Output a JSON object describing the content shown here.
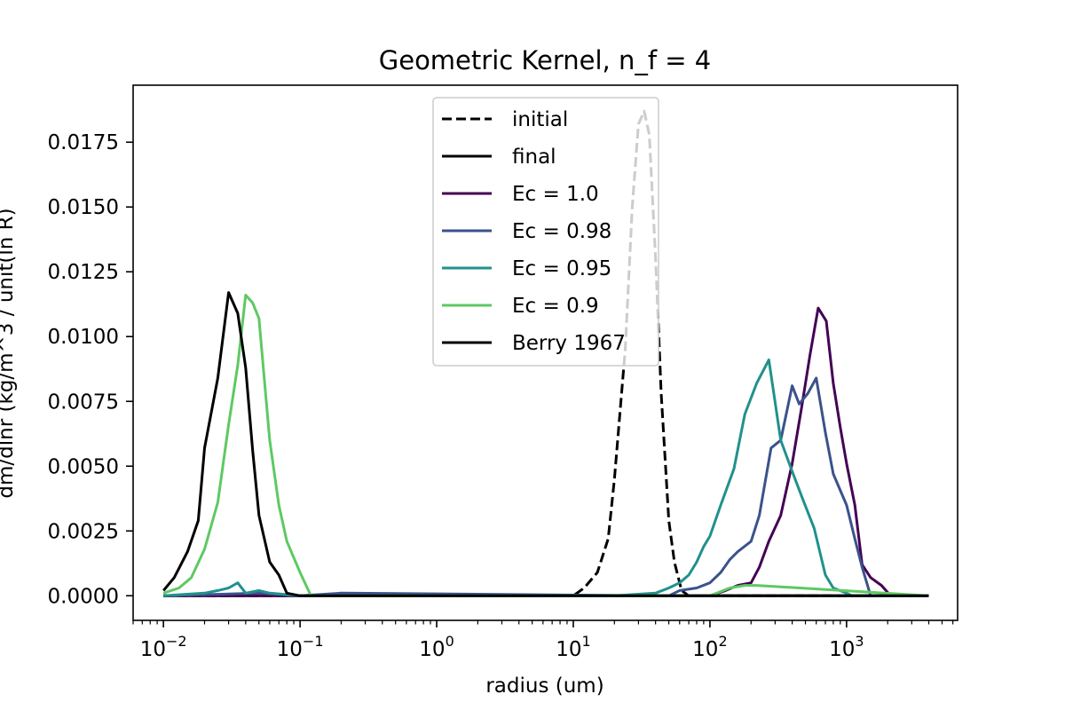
{
  "chart_data": {
    "type": "line",
    "title": "Geometric Kernel, n_f = 4",
    "xlabel": "radius (um)",
    "ylabel": "dm/dlnr (kg/m^3 / unit(ln R)",
    "xscale": "log",
    "xlim": [
      0.006,
      6500
    ],
    "ylim": [
      -0.00095,
      0.0197
    ],
    "x_ticks": [
      {
        "value": 0.01,
        "base": "10",
        "exp": "−2"
      },
      {
        "value": 0.1,
        "base": "10",
        "exp": "−1"
      },
      {
        "value": 1,
        "base": "10",
        "exp": "0"
      },
      {
        "value": 10,
        "base": "10",
        "exp": "1"
      },
      {
        "value": 100,
        "base": "10",
        "exp": "2"
      },
      {
        "value": 1000,
        "base": "10",
        "exp": "3"
      }
    ],
    "y_ticks": [
      {
        "value": 0.0,
        "label": "0.0000"
      },
      {
        "value": 0.0025,
        "label": "0.0025"
      },
      {
        "value": 0.005,
        "label": "0.0050"
      },
      {
        "value": 0.0075,
        "label": "0.0075"
      },
      {
        "value": 0.01,
        "label": "0.0100"
      },
      {
        "value": 0.0125,
        "label": "0.0125"
      },
      {
        "value": 0.015,
        "label": "0.0150"
      },
      {
        "value": 0.0175,
        "label": "0.0175"
      }
    ],
    "grid": false,
    "legend_position": "top-center",
    "series": [
      {
        "name": "initial",
        "color": "#000000",
        "dash": "dashed",
        "x": [
          0.01,
          10,
          12,
          15,
          18,
          20,
          24,
          27,
          30,
          33,
          36,
          40,
          44,
          50,
          55,
          62,
          70,
          4000
        ],
        "y": [
          0,
          0,
          0.0003,
          0.0009,
          0.0022,
          0.0045,
          0.0095,
          0.015,
          0.0182,
          0.0187,
          0.0178,
          0.013,
          0.0078,
          0.0029,
          0.0013,
          0.0002,
          0,
          0
        ]
      },
      {
        "name": "final",
        "color": "#000000",
        "dash": "solid",
        "x": [
          0.01,
          4000
        ],
        "y": [
          0,
          0
        ]
      },
      {
        "name": "Ec = 1.0",
        "color": "#440154",
        "dash": "solid",
        "x": [
          0.01,
          0.03,
          0.05,
          0.1,
          50,
          100,
          130,
          160,
          200,
          230,
          270,
          330,
          400,
          470,
          540,
          620,
          710,
          800,
          900,
          1000,
          1150,
          1300,
          1500,
          1800,
          2100,
          4000
        ],
        "y": [
          0,
          0,
          0,
          0,
          0,
          0,
          0.0002,
          0.0004,
          0.0005,
          0.0011,
          0.0021,
          0.0031,
          0.0051,
          0.0073,
          0.0093,
          0.0111,
          0.0106,
          0.0082,
          0.0065,
          0.0051,
          0.0035,
          0.0012,
          0.0007,
          0.0004,
          0,
          0
        ]
      },
      {
        "name": "Ec = 0.98",
        "color": "#3b528b",
        "dash": "solid",
        "x": [
          0.01,
          0.05,
          0.1,
          0.2,
          50,
          60,
          80,
          100,
          120,
          140,
          160,
          200,
          230,
          280,
          330,
          400,
          450,
          520,
          600,
          700,
          800,
          1000,
          1150,
          1300,
          1500,
          4000
        ],
        "y": [
          0,
          0.0001,
          0,
          0.0001,
          0,
          0.0002,
          0.0003,
          0.0005,
          0.0009,
          0.0014,
          0.0017,
          0.0021,
          0.0031,
          0.0057,
          0.006,
          0.0081,
          0.0074,
          0.0078,
          0.0084,
          0.0063,
          0.0047,
          0.0035,
          0.0022,
          0.0011,
          0,
          0
        ]
      },
      {
        "name": "Ec = 0.95",
        "color": "#21918c",
        "dash": "solid",
        "x": [
          0.01,
          0.02,
          0.025,
          0.03,
          0.035,
          0.04,
          0.05,
          0.06,
          0.1,
          2,
          20,
          40,
          50,
          60,
          70,
          80,
          90,
          100,
          120,
          150,
          180,
          220,
          270,
          330,
          400,
          480,
          580,
          700,
          800,
          1000,
          1100,
          4000
        ],
        "y": [
          0,
          0.0001,
          0.0002,
          0.0003,
          0.0005,
          0.0001,
          0.0002,
          0.0001,
          0,
          0,
          0,
          0.0001,
          0.0003,
          0.0005,
          0.0008,
          0.0013,
          0.0019,
          0.0023,
          0.0035,
          0.0049,
          0.007,
          0.0082,
          0.0091,
          0.006,
          0.0048,
          0.0037,
          0.0026,
          0.0008,
          0.0003,
          0.0001,
          0,
          0
        ]
      },
      {
        "name": "Ec = 0.9",
        "color": "#5ec962",
        "dash": "solid",
        "x": [
          0.01,
          0.013,
          0.016,
          0.02,
          0.025,
          0.03,
          0.035,
          0.04,
          0.045,
          0.05,
          0.06,
          0.07,
          0.08,
          0.1,
          0.12,
          1,
          10,
          50,
          100,
          140,
          180,
          220,
          4000
        ],
        "y": [
          0.0001,
          0.0003,
          0.0007,
          0.0018,
          0.0036,
          0.0066,
          0.0089,
          0.0116,
          0.0113,
          0.0107,
          0.006,
          0.0035,
          0.0021,
          0.0009,
          0,
          0,
          0,
          0,
          0,
          0.0003,
          0.0004,
          0.0004,
          0
        ]
      },
      {
        "name": "Berry 1967",
        "color": "#000000",
        "dash": "solid",
        "x": [
          0.01,
          0.012,
          0.015,
          0.018,
          0.02,
          0.025,
          0.03,
          0.035,
          0.04,
          0.045,
          0.05,
          0.06,
          0.07,
          0.08,
          0.1,
          4000
        ],
        "y": [
          0.0002,
          0.0007,
          0.0017,
          0.0029,
          0.0057,
          0.0084,
          0.0117,
          0.0109,
          0.0088,
          0.0056,
          0.0031,
          0.0013,
          0.0008,
          0.0001,
          0,
          0
        ]
      }
    ]
  }
}
